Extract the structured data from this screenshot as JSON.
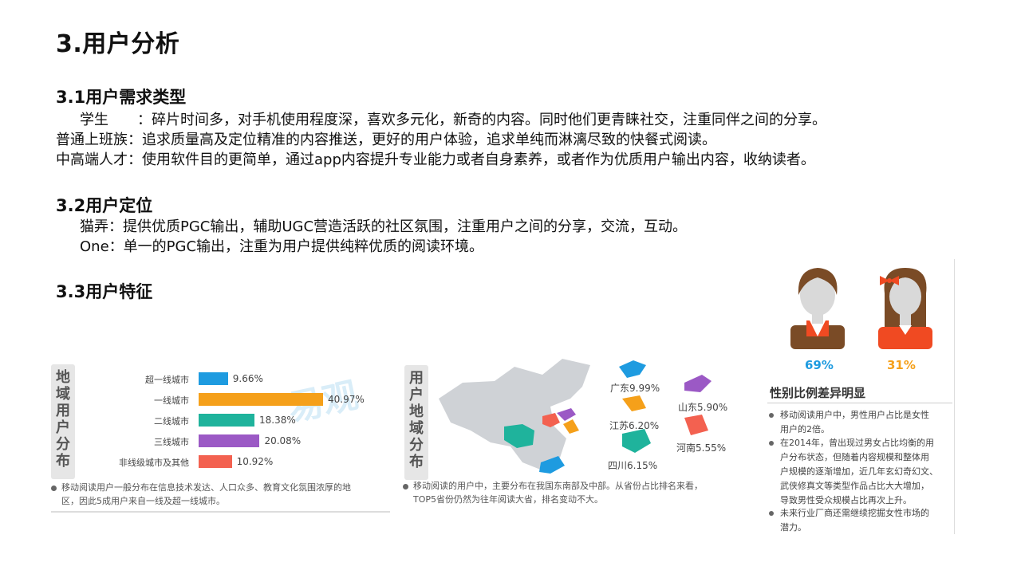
{
  "title": "3.用户分析",
  "section1": {
    "heading": "3.1用户需求类型",
    "lines": [
      {
        "label": "学生　　",
        "text": "：碎片时间多，对手机使用程度深，喜欢多元化，新奇的内容。同时他们更青睐社交，注重同伴之间的分享。"
      },
      {
        "label": "普通上班族",
        "text": "：追求质量高及定位精准的内容推送，更好的用户体验，追求单纯而淋漓尽致的快餐式阅读。"
      },
      {
        "label": "中高端人才",
        "text": "：使用软件目的更简单，通过app内容提升专业能力或者自身素养，或者作为优质用户输出内容，收纳读者。"
      }
    ]
  },
  "section2": {
    "heading": "3.2用户定位",
    "lines": [
      {
        "label": "猫弄",
        "text": "：提供优质PGC输出，辅助UGC营造活跃的社区氛围，注重用户之间的分享，交流，互动。"
      },
      {
        "label": "One",
        "text": "：单一的PGC输出，注重为用户提供纯粹优质的阅读环境。"
      }
    ]
  },
  "section3": {
    "heading": "3.3用户特征"
  },
  "region_panel": {
    "vertical_title": [
      "地",
      "域",
      "用",
      "户",
      "分",
      "布"
    ],
    "note": [
      "移动阅读用户一般分布在信息技术发达、人口众多、教育文化氛围浓厚的地",
      "区，因此5成用户来自一线及超一线城市。"
    ],
    "watermark": "易观"
  },
  "chart_data": {
    "type": "bar",
    "orientation": "horizontal",
    "categories": [
      "超一线城市",
      "一线城市",
      "二线城市",
      "三线城市",
      "非线级城市及其他"
    ],
    "values": [
      9.66,
      40.97,
      18.38,
      20.08,
      10.92
    ],
    "value_labels": [
      "9.66%",
      "40.97%",
      "18.38%",
      "20.08%",
      "10.92%"
    ],
    "colors": [
      "#1e9be0",
      "#f5a01a",
      "#1fb39c",
      "#9b59c5",
      "#f36150"
    ],
    "xlim": [
      0,
      45
    ]
  },
  "map_panel": {
    "vertical_title": [
      "用",
      "户",
      "地",
      "域",
      "分",
      "布"
    ],
    "provinces": [
      {
        "label": "广东9.99%",
        "color": "#1e9be0"
      },
      {
        "label": "山东5.90%",
        "color": "#9b59c5"
      },
      {
        "label": "江苏6.20%",
        "color": "#f5a01a"
      },
      {
        "label": "河南5.55%",
        "color": "#f36150"
      },
      {
        "label": "四川6.15%",
        "color": "#1fb39c"
      }
    ],
    "note": [
      "移动阅读的用户中，主要分布在我国东南部及中部。从省份占比排名来看，",
      "TOP5省份仍然为往年阅读大省，排名变动不大。"
    ]
  },
  "gender_panel": {
    "male_pct": "69%",
    "female_pct": "31%",
    "male_color": "#1e9be0",
    "female_color": "#f5a01a",
    "title": "性别比例差异明显",
    "notes": [
      [
        "移动阅读用户中，男性用户占比是女性",
        "用户的2倍。"
      ],
      [
        "在2014年，曾出现过男女占比均衡的用",
        "户分布状态，但随着内容规模和整体用",
        "户规模的逐渐增加，近几年玄幻奇幻文、",
        "武侠修真文等类型作品占比大大增加，",
        "导致男性受众规模占比再次上升。"
      ],
      [
        "未来行业厂商还需继续挖掘女性市场的",
        "潜力。"
      ]
    ]
  }
}
